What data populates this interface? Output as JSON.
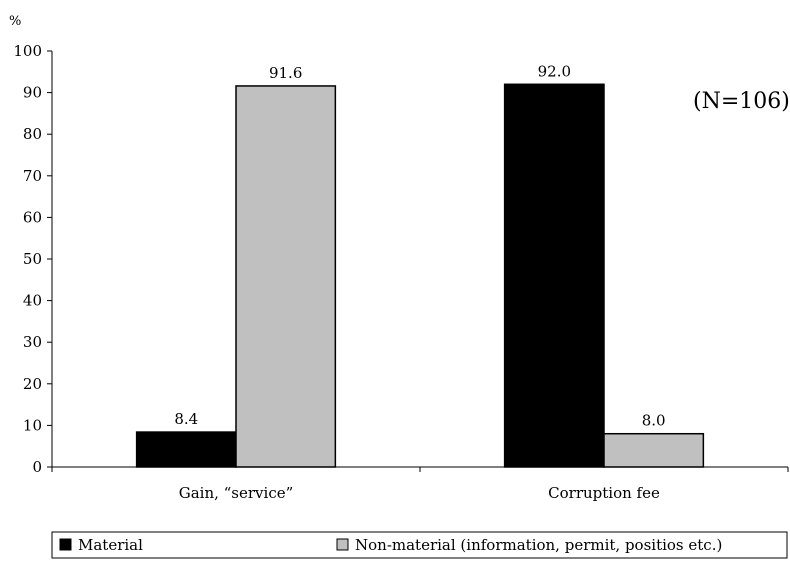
{
  "chart_data": {
    "type": "bar",
    "y_unit": "%",
    "categories": [
      "Gain, “service”",
      "Corruption fee"
    ],
    "series": [
      {
        "name": "Material",
        "color": "#000000",
        "values": [
          8.4,
          92.0
        ],
        "labels": [
          "8.4",
          "92.0"
        ]
      },
      {
        "name": "Non-material (information, permit, positios etc.)",
        "color": "#c0c0c0",
        "values": [
          91.6,
          8.0
        ],
        "labels": [
          "91.6",
          "8.0"
        ]
      }
    ],
    "ylim": [
      0,
      100
    ],
    "yticks": [
      "0",
      "10",
      "20",
      "30",
      "40",
      "50",
      "60",
      "70",
      "80",
      "90",
      "100"
    ],
    "annotation": "(N=106)",
    "grid": false,
    "legend_position": "bottom"
  }
}
